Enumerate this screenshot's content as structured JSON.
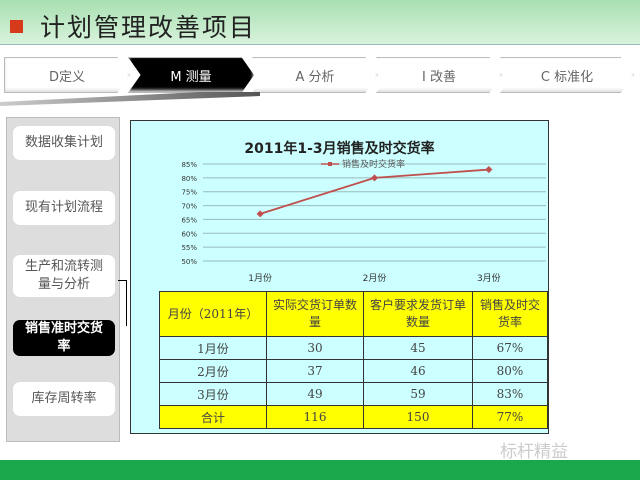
{
  "header": {
    "title": "计划管理改善项目",
    "accent": "#d63a1a"
  },
  "tabs": [
    {
      "label": "D定义"
    },
    {
      "label": "M 测量"
    },
    {
      "label": "A 分析"
    },
    {
      "label": "I 改善"
    },
    {
      "label": "C 标准化"
    }
  ],
  "sidebar": {
    "items": [
      {
        "label": "数据收集计划"
      },
      {
        "label": "现有计划流程"
      },
      {
        "label": "生产和流转测量与分析"
      },
      {
        "label": "销售准时交货率"
      },
      {
        "label": "库存周转率"
      }
    ]
  },
  "chart_data": {
    "type": "line",
    "title": "2011年1-3月销售及时交货率",
    "categories": [
      "1月份",
      "2月份",
      "3月份"
    ],
    "series": [
      {
        "name": "销售及时交货率",
        "values": [
          67,
          80,
          83
        ],
        "color": "#c0504d"
      }
    ],
    "ylim": [
      50,
      85
    ],
    "yticks": [
      "50%",
      "55%",
      "60%",
      "65%",
      "70%",
      "75%",
      "80%",
      "85%"
    ],
    "grid": true,
    "legend": "top"
  },
  "table": {
    "headers": [
      "月份（2011年）",
      "实际交货订单数量",
      "客户要求发货订单数量",
      "销售及时交货率"
    ],
    "rows": [
      [
        "1月份",
        "30",
        "45",
        "67%"
      ],
      [
        "2月份",
        "37",
        "46",
        "80%"
      ],
      [
        "3月份",
        "49",
        "59",
        "83%"
      ]
    ],
    "total": [
      "合计",
      "116",
      "150",
      "77%"
    ]
  },
  "watermark": "标杆精益"
}
